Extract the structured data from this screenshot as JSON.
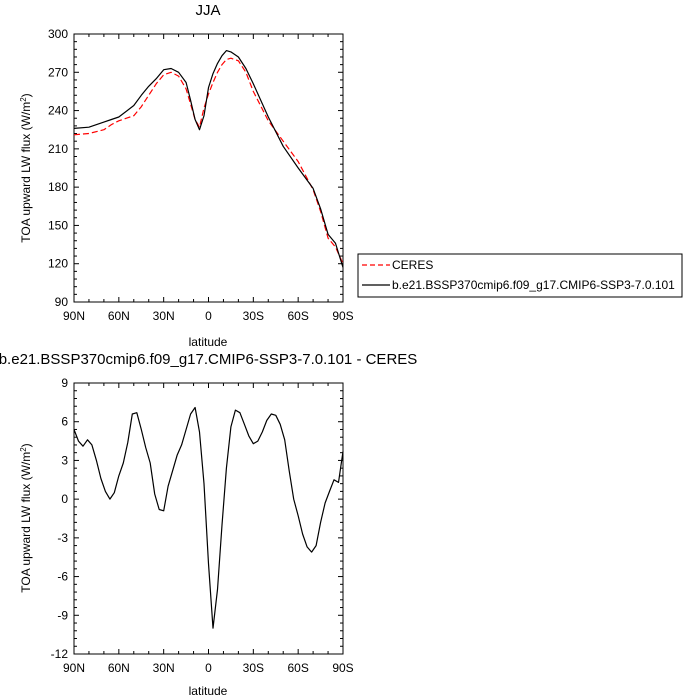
{
  "chart_data": [
    {
      "type": "line",
      "title": "JJA",
      "xlabel": "latitude",
      "ylabel": "TOA upward LW flux (W/m",
      "ylabel_sup": "2",
      "ylabel_close": ")",
      "xlim": [
        90,
        -90
      ],
      "ylim": [
        90,
        300
      ],
      "xticks": [
        90,
        60,
        30,
        0,
        -30,
        -60,
        -90
      ],
      "xtick_labels": [
        "90N",
        "60N",
        "30N",
        "0",
        "30S",
        "60S",
        "90S"
      ],
      "yticks": [
        90,
        120,
        150,
        180,
        210,
        240,
        270,
        300
      ],
      "ytick_labels": [
        "90",
        "120",
        "150",
        "180",
        "210",
        "240",
        "270",
        "300"
      ],
      "legend": {
        "placement": "right",
        "entries": [
          "CERES",
          "b.e21.BSSP370cmip6.f09_g17.CMIP6-SSP3-7.0.101"
        ]
      },
      "series": [
        {
          "name": "CERES",
          "color": "#ff0000",
          "style": "dashed",
          "x": [
            90,
            80,
            70,
            65,
            60,
            50,
            45,
            40,
            35,
            30,
            25,
            20,
            15,
            12,
            9,
            6,
            3,
            0,
            -3,
            -6,
            -9,
            -12,
            -15,
            -20,
            -25,
            -30,
            -40,
            -50,
            -60,
            -70,
            -75,
            -80,
            -85,
            -90
          ],
          "y": [
            221,
            222,
            225,
            229,
            232,
            236,
            243,
            252,
            261,
            268,
            270,
            267,
            257,
            245,
            233,
            227,
            242,
            253,
            262,
            270,
            276,
            280,
            281,
            279,
            270,
            255,
            232,
            216,
            200,
            178,
            161,
            140,
            133,
            120
          ]
        },
        {
          "name": "b.e21.BSSP370cmip6.f09_g17.CMIP6-SSP3-7.0.101",
          "color": "#000000",
          "style": "solid",
          "x": [
            90,
            80,
            70,
            65,
            60,
            50,
            45,
            40,
            35,
            30,
            25,
            20,
            15,
            12,
            9,
            6,
            3,
            0,
            -3,
            -6,
            -9,
            -12,
            -15,
            -20,
            -25,
            -30,
            -40,
            -50,
            -60,
            -70,
            -75,
            -80,
            -85,
            -90
          ],
          "y": [
            226,
            227,
            231,
            233,
            235,
            244,
            252,
            259,
            265,
            272,
            273,
            270,
            262,
            248,
            233,
            225,
            236,
            258,
            269,
            277,
            283,
            287,
            286,
            282,
            273,
            261,
            235,
            212,
            195,
            179,
            163,
            143,
            136,
            117
          ]
        }
      ]
    },
    {
      "type": "line",
      "title": "b.e21.BSSP370cmip6.f09_g17.CMIP6-SSP3-7.0.101 - CERES",
      "xlabel": "latitude",
      "ylabel": "TOA upward LW flux (W/m",
      "ylabel_sup": "2",
      "ylabel_close": ")",
      "xlim": [
        90,
        -90
      ],
      "ylim": [
        -12,
        9
      ],
      "xticks": [
        90,
        60,
        30,
        0,
        -30,
        -60,
        -90
      ],
      "xtick_labels": [
        "90N",
        "60N",
        "30N",
        "0",
        "30S",
        "60S",
        "90S"
      ],
      "yticks": [
        -12,
        -9,
        -6,
        -3,
        0,
        3,
        6,
        9
      ],
      "ytick_labels": [
        "-12",
        "-9",
        "-6",
        "-3",
        "0",
        "3",
        "6",
        "9"
      ],
      "series": [
        {
          "color": "#000000",
          "style": "solid",
          "x": [
            90,
            87,
            84,
            81,
            78,
            75,
            72,
            69,
            66,
            63,
            60,
            57,
            54,
            51,
            48,
            45,
            42,
            39,
            36,
            33,
            30,
            27,
            24,
            21,
            18,
            15,
            12,
            9,
            6,
            3,
            0,
            -3,
            -6,
            -9,
            -12,
            -15,
            -18,
            -21,
            -24,
            -27,
            -30,
            -33,
            -36,
            -39,
            -42,
            -45,
            -48,
            -51,
            -54,
            -57,
            -60,
            -63,
            -66,
            -69,
            -72,
            -75,
            -78,
            -81,
            -84,
            -87,
            -90
          ],
          "y": [
            5.4,
            4.5,
            4.1,
            4.6,
            4.2,
            3.0,
            1.6,
            0.6,
            0.0,
            0.5,
            1.8,
            2.8,
            4.4,
            6.6,
            6.7,
            5.4,
            4.0,
            2.8,
            0.4,
            -0.8,
            -0.9,
            1.0,
            2.2,
            3.4,
            4.2,
            5.4,
            6.6,
            7.1,
            5.2,
            1.2,
            -5.0,
            -10.0,
            -7.0,
            -2.0,
            2.4,
            5.6,
            6.9,
            6.7,
            5.8,
            4.9,
            4.3,
            4.5,
            5.2,
            6.1,
            6.6,
            6.5,
            5.8,
            4.6,
            2.2,
            0.0,
            -1.3,
            -2.7,
            -3.7,
            -4.1,
            -3.6,
            -1.8,
            -0.3,
            0.6,
            1.5,
            1.3,
            3.7
          ]
        }
      ]
    }
  ]
}
